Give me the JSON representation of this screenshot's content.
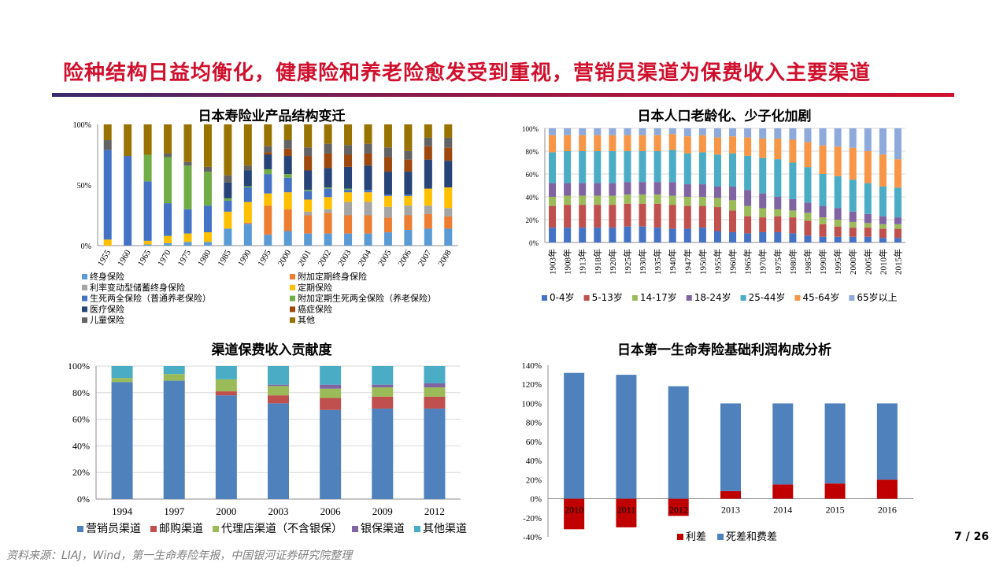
{
  "header": {
    "title": "险种结构日益均衡化，健康险和养老险愈发受到重视，营销员渠道为保费收入主要渠道"
  },
  "footer": {
    "source": "资料来源：LIAJ，Wind，第一生命寿险年报，中国银河证券研究院整理",
    "page": "7 / 26"
  },
  "colors": {
    "title": "#d0102d",
    "rule_start": "#3a2a6e",
    "rule_end": "#d0102d"
  },
  "chart_data": [
    {
      "id": "products",
      "type": "bar",
      "stacked": true,
      "title": "日本寿险业产品结构变迁",
      "categories": [
        "1955",
        "1960",
        "1965",
        "1970",
        "1975",
        "1980",
        "1985",
        "1990",
        "1995",
        "2000",
        "2001",
        "2002",
        "2003",
        "2004",
        "2005",
        "2006",
        "2007",
        "2008"
      ],
      "yticks": [
        "0%",
        "50%",
        "100%"
      ],
      "ylim": [
        0,
        100
      ],
      "legend_position": "bottom",
      "series": [
        {
          "name": "终身保险",
          "color": "#5b9bd5",
          "values": [
            0,
            0,
            1,
            2,
            3,
            3,
            14,
            18,
            9,
            12,
            10,
            10,
            10,
            10,
            11,
            13,
            14,
            14
          ]
        },
        {
          "name": "附加定期终身保险",
          "color": "#ed7d31",
          "values": [
            0,
            0,
            0,
            0,
            0,
            0,
            0,
            1,
            24,
            18,
            15,
            17,
            15,
            15,
            12,
            12,
            12,
            10
          ]
        },
        {
          "name": "利率变动型储蓄终身保险",
          "color": "#a5a5a5",
          "values": [
            0,
            0,
            0,
            0,
            0,
            0,
            0,
            0,
            0,
            0,
            3,
            3,
            11,
            11,
            9,
            8,
            7,
            7
          ]
        },
        {
          "name": "定期保险",
          "color": "#ffc000",
          "values": [
            5,
            0,
            3,
            6,
            7,
            8,
            14,
            17,
            10,
            14,
            10,
            10,
            8,
            8,
            9,
            8,
            14,
            17
          ]
        },
        {
          "name": "生死两全保险（普通养老保险）",
          "color": "#4472c4",
          "values": [
            74,
            74,
            49,
            27,
            20,
            22,
            9,
            12,
            16,
            12,
            7,
            7,
            2,
            2,
            1,
            1,
            0,
            0
          ]
        },
        {
          "name": "附加定期生死两全保险（养老保险）",
          "color": "#70ad47",
          "values": [
            0,
            0,
            22,
            38,
            36,
            28,
            2,
            1,
            4,
            3,
            1,
            1,
            1,
            0,
            0,
            0,
            0,
            0
          ]
        },
        {
          "name": "医疗保险",
          "color": "#264478",
          "values": [
            0,
            0,
            0,
            0,
            0,
            0,
            13,
            13,
            12,
            15,
            16,
            16,
            18,
            20,
            19,
            19,
            24,
            22
          ]
        },
        {
          "name": "癌症保险",
          "color": "#9e480e",
          "values": [
            0,
            0,
            0,
            0,
            0,
            0,
            0,
            0,
            2,
            6,
            12,
            12,
            10,
            10,
            12,
            10,
            11,
            11
          ]
        },
        {
          "name": "儿童保险",
          "color": "#636363",
          "values": [
            8,
            0,
            0,
            3,
            3,
            4,
            6,
            4,
            5,
            7,
            7,
            8,
            8,
            8,
            8,
            7,
            7,
            8
          ]
        },
        {
          "name": "其他",
          "color": "#997300",
          "values": [
            13,
            26,
            25,
            24,
            31,
            35,
            42,
            34,
            18,
            13,
            19,
            16,
            17,
            16,
            19,
            22,
            11,
            11
          ]
        }
      ]
    },
    {
      "id": "population",
      "type": "bar",
      "stacked": true,
      "title": "日本人口老龄化、少子化加剧",
      "categories": [
        "1903年",
        "1908年",
        "1913年",
        "1918年",
        "1920年",
        "1925年",
        "1930年",
        "1935年",
        "1940年",
        "1947年",
        "1950年",
        "1955年",
        "1960年",
        "1965年",
        "1970年",
        "1975年",
        "1980年",
        "1985年",
        "1990年",
        "1995年",
        "2000年",
        "2005年",
        "2010年",
        "2015年"
      ],
      "yticks": [
        "0%",
        "20%",
        "40%",
        "60%",
        "80%",
        "100%"
      ],
      "ylim": [
        0,
        100
      ],
      "legend_position": "bottom",
      "series": [
        {
          "name": "0-4岁",
          "color": "#4472c4",
          "values": [
            13,
            13,
            13,
            13,
            13,
            14,
            14,
            13,
            12,
            12,
            13,
            10,
            9,
            8,
            9,
            9,
            8,
            6,
            5,
            5,
            5,
            5,
            4,
            4
          ]
        },
        {
          "name": "5-13岁",
          "color": "#c0504d",
          "values": [
            19,
            20,
            20,
            20,
            20,
            20,
            20,
            21,
            21,
            20,
            19,
            21,
            19,
            15,
            13,
            14,
            14,
            13,
            11,
            9,
            8,
            8,
            8,
            8
          ]
        },
        {
          "name": "14-17岁",
          "color": "#9bbb59",
          "values": [
            8,
            8,
            8,
            8,
            8,
            8,
            8,
            8,
            8,
            8,
            8,
            8,
            9,
            9,
            8,
            6,
            6,
            7,
            6,
            6,
            5,
            4,
            4,
            4
          ]
        },
        {
          "name": "18-24岁",
          "color": "#8064a2",
          "values": [
            12,
            11,
            11,
            11,
            11,
            11,
            11,
            11,
            12,
            11,
            11,
            10,
            12,
            14,
            13,
            11,
            10,
            9,
            10,
            10,
            9,
            8,
            7,
            6
          ]
        },
        {
          "name": "25-44岁",
          "color": "#4bacc6",
          "values": [
            27,
            28,
            28,
            28,
            28,
            27,
            27,
            27,
            28,
            27,
            28,
            28,
            29,
            30,
            31,
            33,
            32,
            31,
            28,
            28,
            28,
            27,
            26,
            26
          ]
        },
        {
          "name": "45-64岁",
          "color": "#f79646",
          "values": [
            15,
            14,
            14,
            14,
            14,
            14,
            14,
            14,
            14,
            15,
            15,
            15,
            15,
            16,
            17,
            18,
            20,
            22,
            25,
            26,
            28,
            28,
            28,
            25
          ]
        },
        {
          "name": "65岁以上",
          "color": "#8eaadb",
          "values": [
            6,
            6,
            6,
            6,
            6,
            6,
            6,
            6,
            5,
            7,
            6,
            8,
            7,
            8,
            9,
            9,
            10,
            12,
            15,
            16,
            17,
            20,
            23,
            27
          ]
        }
      ]
    },
    {
      "id": "channels",
      "type": "bar",
      "stacked": true,
      "title": "渠道保费收入贡献度",
      "categories": [
        "1994",
        "1997",
        "2000",
        "2003",
        "2006",
        "2009",
        "2012"
      ],
      "yticks": [
        "0%",
        "20%",
        "40%",
        "60%",
        "80%",
        "100%"
      ],
      "ylim": [
        0,
        100
      ],
      "legend_position": "bottom",
      "series": [
        {
          "name": "营销员渠道",
          "color": "#4f81bd",
          "values": [
            88,
            89,
            78,
            72,
            67,
            68,
            68
          ]
        },
        {
          "name": "邮购渠道",
          "color": "#c0504d",
          "values": [
            0,
            0,
            3,
            6,
            9,
            9,
            9
          ]
        },
        {
          "name": "代理店渠道（不含银保）",
          "color": "#9bbb59",
          "values": [
            3,
            5,
            9,
            7,
            7,
            7,
            7
          ]
        },
        {
          "name": "银保渠道",
          "color": "#8064a2",
          "values": [
            0,
            0,
            0,
            1,
            3,
            2,
            3
          ]
        },
        {
          "name": "其他渠道",
          "color": "#4bacc6",
          "values": [
            9,
            6,
            10,
            14,
            14,
            14,
            13
          ]
        }
      ]
    },
    {
      "id": "profit",
      "type": "bar",
      "stacked": true,
      "title": "日本第一生命寿险基础利润构成分析",
      "categories": [
        "2010",
        "2011",
        "2012",
        "2013",
        "2014",
        "2015",
        "2016"
      ],
      "yticks": [
        "-40%",
        "-20%",
        "0%",
        "20%",
        "40%",
        "60%",
        "80%",
        "100%",
        "120%",
        "140%"
      ],
      "ylim": [
        -40,
        140
      ],
      "legend_position": "bottom",
      "series": [
        {
          "name": "利差",
          "color": "#c00000",
          "values": [
            -32,
            -30,
            -18,
            8,
            15,
            16,
            20
          ]
        },
        {
          "name": "死差和费差",
          "color": "#4f81bd",
          "values": [
            132,
            130,
            118,
            92,
            85,
            84,
            80
          ]
        }
      ]
    }
  ]
}
